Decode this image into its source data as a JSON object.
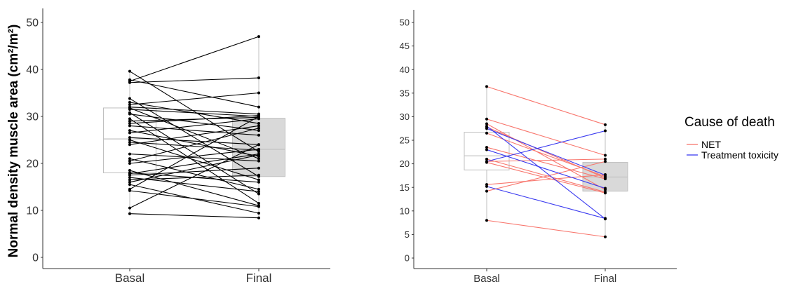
{
  "chart_data": [
    {
      "type": "line",
      "subtype": "paired-slope-with-boxplots",
      "title": "",
      "xlabel": "",
      "ylabel": "Normal density muscle area (cm²/m²)",
      "categories": [
        "Basal",
        "Final"
      ],
      "ylim": [
        0,
        50
      ],
      "yticks": [
        0,
        10,
        20,
        30,
        40,
        50
      ],
      "grid": false,
      "colors": {
        "line": "#000000",
        "point": "#000000",
        "box_basal_fill": "#ffffff",
        "box_final_fill": "#d9d9d9",
        "box_stroke": "#bfbfbf"
      },
      "boxplots": [
        {
          "category": "Basal",
          "q1": 18.0,
          "median": 25.2,
          "q3": 31.8,
          "min": 9.3,
          "max": 39.6
        },
        {
          "category": "Final",
          "q1": 17.2,
          "median": 23.0,
          "q3": 29.6,
          "min": 8.4,
          "max": 47.0
        }
      ],
      "pairs": [
        [
          39.6,
          22.5
        ],
        [
          37.8,
          32.0
        ],
        [
          37.5,
          47.0
        ],
        [
          37.2,
          38.2
        ],
        [
          33.8,
          17.2
        ],
        [
          33.0,
          28.5
        ],
        [
          32.5,
          35.0
        ],
        [
          32.0,
          30.5
        ],
        [
          31.8,
          21.0
        ],
        [
          31.5,
          30.0
        ],
        [
          30.8,
          13.5
        ],
        [
          30.5,
          27.0
        ],
        [
          29.5,
          11.5
        ],
        [
          29.0,
          29.8
        ],
        [
          28.5,
          30.2
        ],
        [
          28.0,
          26.0
        ],
        [
          27.0,
          21.5
        ],
        [
          26.5,
          29.5
        ],
        [
          25.5,
          24.0
        ],
        [
          25.0,
          16.5
        ],
        [
          24.5,
          22.8
        ],
        [
          24.0,
          28.0
        ],
        [
          22.0,
          20.5
        ],
        [
          21.0,
          14.5
        ],
        [
          20.5,
          27.5
        ],
        [
          20.0,
          23.0
        ],
        [
          18.5,
          11.0
        ],
        [
          18.0,
          16.0
        ],
        [
          17.8,
          22.0
        ],
        [
          17.5,
          19.0
        ],
        [
          17.0,
          14.0
        ],
        [
          16.5,
          17.5
        ],
        [
          16.0,
          21.8
        ],
        [
          15.5,
          9.4
        ],
        [
          14.5,
          30.0
        ],
        [
          14.2,
          10.8
        ],
        [
          10.5,
          24.0
        ],
        [
          9.3,
          8.4
        ]
      ]
    },
    {
      "type": "line",
      "subtype": "paired-slope-with-boxplots",
      "title": "",
      "xlabel": "",
      "ylabel": "",
      "categories": [
        "Basal",
        "Final"
      ],
      "ylim": [
        0,
        50
      ],
      "yticks": [
        0,
        5,
        10,
        15,
        20,
        25,
        30,
        35,
        40,
        45,
        50
      ],
      "grid": false,
      "legend": {
        "title": "Cause of death",
        "placement": "right",
        "entries": [
          "NET",
          "Treatment toxicity"
        ]
      },
      "colors": {
        "NET": "#f8766d",
        "Treatment toxicity": "#3b3bf0",
        "point": "#000000",
        "box_basal_fill": "#ffffff",
        "box_final_fill": "#d9d9d9",
        "box_stroke": "#bfbfbf"
      },
      "boxplots": [
        {
          "category": "Basal",
          "q1": 18.7,
          "median": 21.7,
          "q3": 26.7,
          "min": 8.0,
          "max": 36.4
        },
        {
          "category": "Final",
          "q1": 14.2,
          "median": 17.2,
          "q3": 20.3,
          "min": 4.5,
          "max": 28.3
        }
      ],
      "series": [
        {
          "name": "NET",
          "pairs": [
            [
              36.4,
              28.3
            ],
            [
              29.5,
              21.8
            ],
            [
              28.5,
              14.5
            ],
            [
              27.8,
              17.0
            ],
            [
              26.5,
              17.3
            ],
            [
              23.5,
              16.8
            ],
            [
              21.0,
              14.0
            ],
            [
              20.5,
              21.0
            ],
            [
              20.3,
              13.8
            ],
            [
              15.6,
              17.7
            ],
            [
              14.2,
              20.5
            ],
            [
              8.0,
              4.5
            ]
          ]
        },
        {
          "name": "Treatment toxicity",
          "pairs": [
            [
              28.0,
              8.3
            ],
            [
              27.5,
              17.6
            ],
            [
              23.0,
              14.8
            ],
            [
              20.5,
              27.0
            ],
            [
              15.2,
              8.4
            ]
          ]
        }
      ]
    }
  ]
}
